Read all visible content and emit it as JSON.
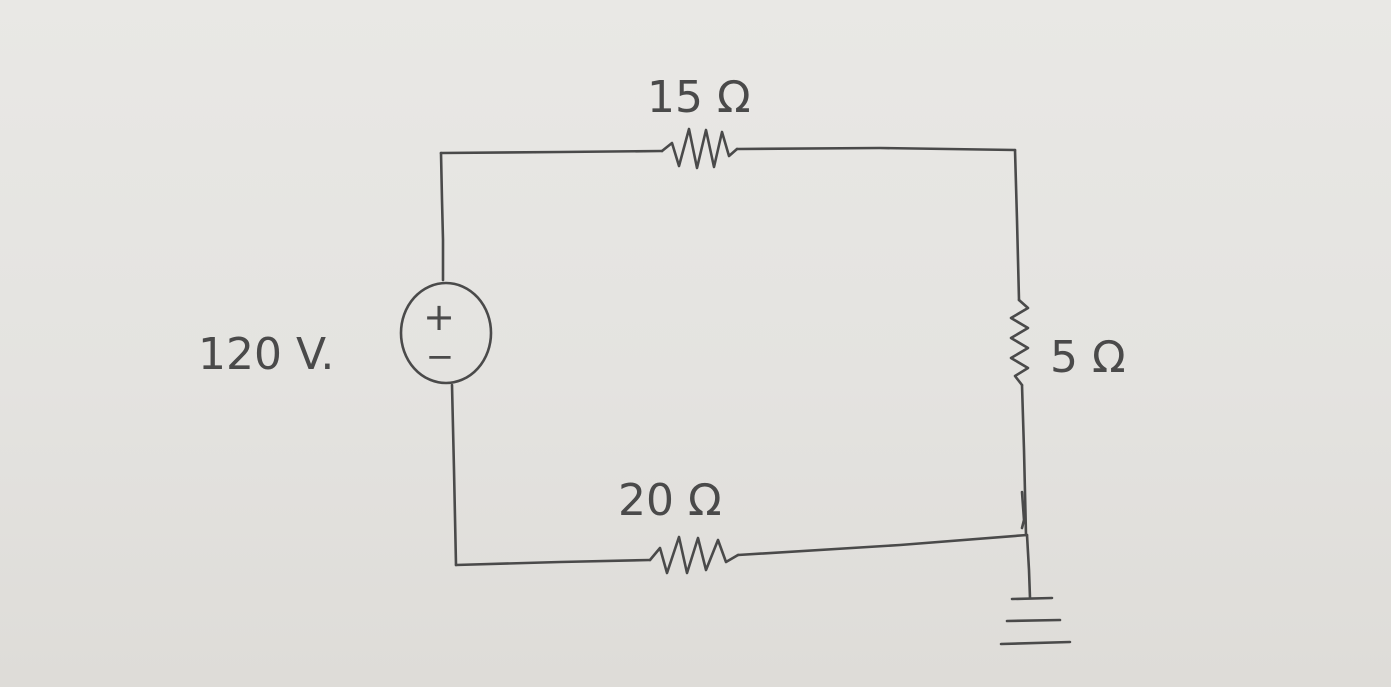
{
  "source": {
    "voltage_label": "120 V.",
    "plus_sign": "+",
    "minus_sign": "−"
  },
  "resistors": {
    "top": {
      "label": "15 Ω"
    },
    "right": {
      "label": "5 Ω"
    },
    "bottom": {
      "label": "20 Ω"
    }
  },
  "colors": {
    "ink": "#4a4a4a",
    "paper": "#e6e5e2"
  },
  "icons": {
    "ground": "ground-icon",
    "voltage_source": "voltage-source-icon",
    "resistor": "resistor-icon"
  }
}
